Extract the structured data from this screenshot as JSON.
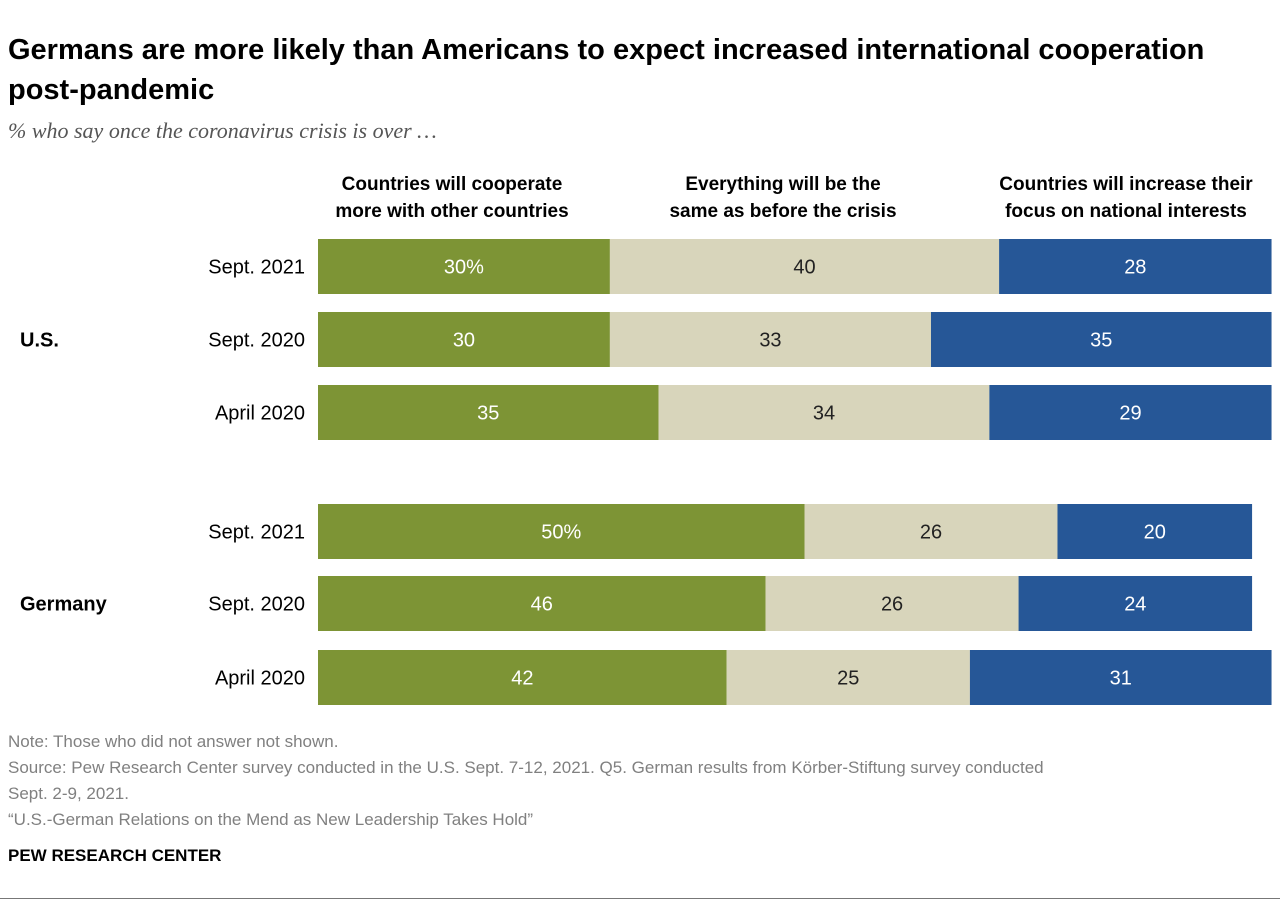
{
  "title": "Germans are more likely than Americans to expect increased international cooperation post-pandemic",
  "subtitle": "% who say once the coronavirus crisis is over …",
  "notes": {
    "note": "Note: Those who did not answer not shown.",
    "source_line1": "Source: Pew Research Center survey conducted in the U.S. Sept. 7-12, 2021. Q5. German results from Körber-Stiftung survey conducted",
    "source_line2": "Sept. 2-9, 2021.",
    "report": "“U.S.-German Relations on the Mend as New Leadership Takes Hold”"
  },
  "brand": "PEW RESEARCH CENTER",
  "colors": {
    "cooperate": "#7d9435",
    "same": "#d8d5bb",
    "national": "#265797"
  },
  "chart_data": {
    "type": "bar",
    "orientation": "horizontal",
    "stacked": true,
    "series": [
      {
        "name": "Countries will cooperate more with other countries",
        "header_lines": [
          "Countries will cooperate",
          "more with other countries"
        ]
      },
      {
        "name": "Everything will be the same as before the crisis",
        "header_lines": [
          "Everything will be the",
          "same as before the crisis"
        ]
      },
      {
        "name": "Countries will increase their focus on national interests",
        "header_lines": [
          "Countries will increase their",
          "focus on national interests"
        ]
      }
    ],
    "groups": [
      {
        "name": "U.S.",
        "rows": [
          {
            "label": "Sept. 2021",
            "values": [
              30,
              40,
              28
            ],
            "value_labels": [
              "30%",
              "40",
              "28"
            ]
          },
          {
            "label": "Sept. 2020",
            "values": [
              30,
              33,
              35
            ],
            "value_labels": [
              "30",
              "33",
              "35"
            ]
          },
          {
            "label": "April 2020",
            "values": [
              35,
              34,
              29
            ],
            "value_labels": [
              "35",
              "34",
              "29"
            ]
          }
        ]
      },
      {
        "name": "Germany",
        "rows": [
          {
            "label": "Sept. 2021",
            "values": [
              50,
              26,
              20
            ],
            "value_labels": [
              "50%",
              "26",
              "20"
            ]
          },
          {
            "label": "Sept. 2020",
            "values": [
              46,
              26,
              24
            ],
            "value_labels": [
              "46",
              "26",
              "24"
            ]
          },
          {
            "label": "April 2020",
            "values": [
              42,
              25,
              31
            ],
            "value_labels": [
              "42",
              "25",
              "31"
            ]
          }
        ]
      }
    ],
    "xlim": [
      0,
      100
    ]
  }
}
